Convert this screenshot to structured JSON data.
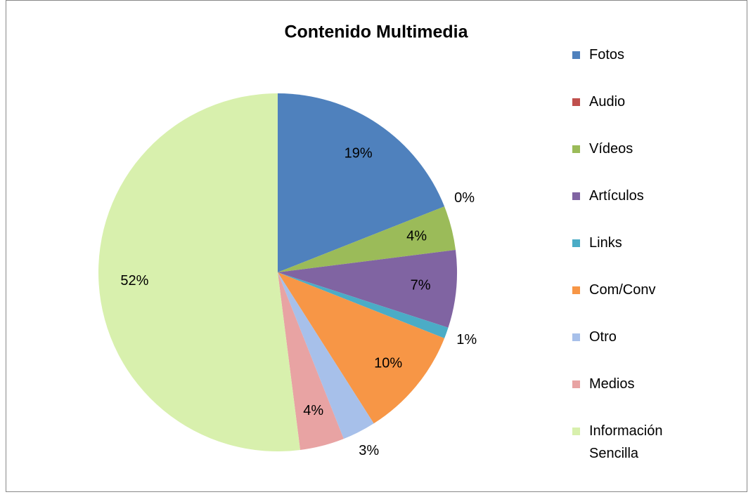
{
  "chart_data": {
    "type": "pie",
    "title": "Contenido Multimedia",
    "categories": [
      "Fotos",
      "Audio",
      "Vídeos",
      "Artículos",
      "Links",
      "Com/Conv",
      "Otro",
      "Medios",
      "Información Sencilla"
    ],
    "values": [
      19,
      0,
      4,
      7,
      1,
      10,
      3,
      4,
      52
    ],
    "value_labels": [
      "19%",
      "0%",
      "4%",
      "7%",
      "1%",
      "10%",
      "3%",
      "4%",
      "52%"
    ],
    "colors": [
      "#4f81bd",
      "#c0504d",
      "#9bbb59",
      "#8064a2",
      "#4bacc6",
      "#f79646",
      "#a7c0ea",
      "#e8a3a3",
      "#d8f0ad"
    ],
    "legend": "right"
  }
}
